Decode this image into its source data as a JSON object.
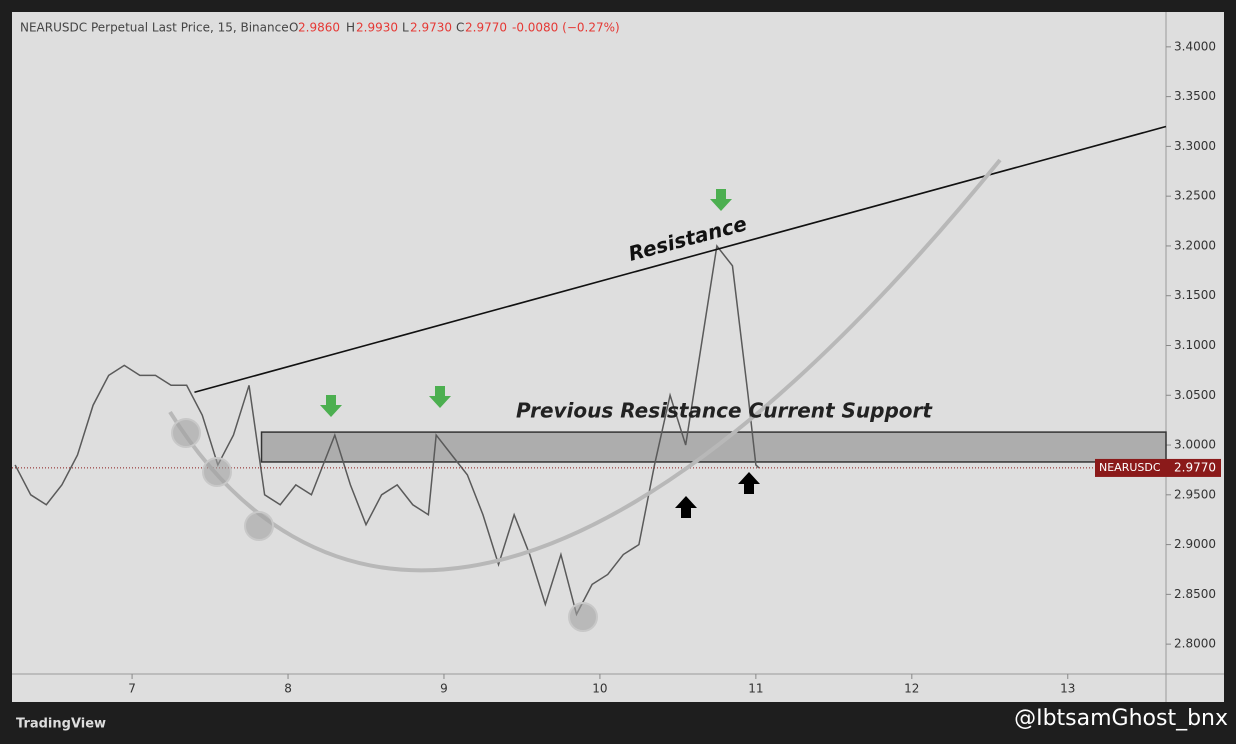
{
  "chart_data": {
    "type": "line",
    "header": {
      "symbol": "NEARUSDC Perpetual Last Price, 15, Binance",
      "open_label": "O",
      "open": "2.9860",
      "high_label": "H",
      "high": "2.9930",
      "low_label": "L",
      "low": "2.9730",
      "close_label": "C",
      "close": "2.9770",
      "change": "-0.0080 (−0.27%)"
    },
    "series": [
      {
        "name": "NEARUSDC",
        "color": "#5a5a5a",
        "x": [
          6.25,
          6.35,
          6.45,
          6.55,
          6.65,
          6.75,
          6.85,
          6.95,
          7.05,
          7.15,
          7.25,
          7.35,
          7.45,
          7.55,
          7.65,
          7.75,
          7.85,
          7.95,
          8.05,
          8.15,
          8.25,
          8.3,
          8.4,
          8.5,
          8.6,
          8.7,
          8.8,
          8.9,
          8.95,
          9.05,
          9.15,
          9.25,
          9.35,
          9.45,
          9.55,
          9.65,
          9.75,
          9.85,
          9.95,
          10.05,
          10.15,
          10.25,
          10.35,
          10.45,
          10.55,
          10.65,
          10.75,
          10.85,
          10.95,
          11.0,
          11.02
        ],
        "values": [
          2.98,
          2.95,
          2.94,
          2.96,
          2.99,
          3.04,
          3.07,
          3.08,
          3.07,
          3.07,
          3.06,
          3.06,
          3.03,
          2.98,
          3.01,
          3.06,
          2.95,
          2.94,
          2.96,
          2.95,
          2.99,
          3.01,
          2.96,
          2.92,
          2.95,
          2.96,
          2.94,
          2.93,
          3.01,
          2.99,
          2.97,
          2.93,
          2.88,
          2.93,
          2.89,
          2.84,
          2.89,
          2.83,
          2.86,
          2.87,
          2.89,
          2.9,
          2.98,
          3.05,
          3.0,
          3.1,
          3.2,
          3.18,
          3.05,
          2.98,
          2.977
        ]
      }
    ],
    "xlim": [
      6.23,
      13.63
    ],
    "xticks": [
      7,
      8,
      9,
      10,
      11,
      12,
      13
    ],
    "ylim": [
      2.77,
      3.435
    ],
    "yticks": [
      {
        "value": 2.8,
        "label": "2.8000"
      },
      {
        "value": 2.85,
        "label": "2.8500"
      },
      {
        "value": 2.9,
        "label": "2.9000"
      },
      {
        "value": 2.95,
        "label": "2.9500"
      },
      {
        "value": 3.0,
        "label": "3.0000"
      },
      {
        "value": 3.05,
        "label": "3.0500"
      },
      {
        "value": 3.1,
        "label": "3.1000"
      },
      {
        "value": 3.15,
        "label": "3.1500"
      },
      {
        "value": 3.2,
        "label": "3.2000"
      },
      {
        "value": 3.25,
        "label": "3.2500"
      },
      {
        "value": 3.3,
        "label": "3.3000"
      },
      {
        "value": 3.35,
        "label": "3.3500"
      },
      {
        "value": 3.4,
        "label": "3.4000"
      }
    ],
    "last_price": {
      "symbol": "NEARUSDC",
      "value": 2.977,
      "label": "2.9770",
      "color": "#8b1a1a"
    },
    "resistance_line": {
      "x": [
        7.4,
        13.63
      ],
      "values": [
        3.053,
        3.32
      ]
    },
    "support_zone": {
      "x": [
        7.83,
        13.63
      ],
      "values": [
        2.983,
        3.013
      ]
    },
    "annotations": [
      "Resistance",
      "Previous Resistance Current Support"
    ],
    "branding": "TradingView",
    "watermark": "@IbtsamGhost_bnx"
  }
}
